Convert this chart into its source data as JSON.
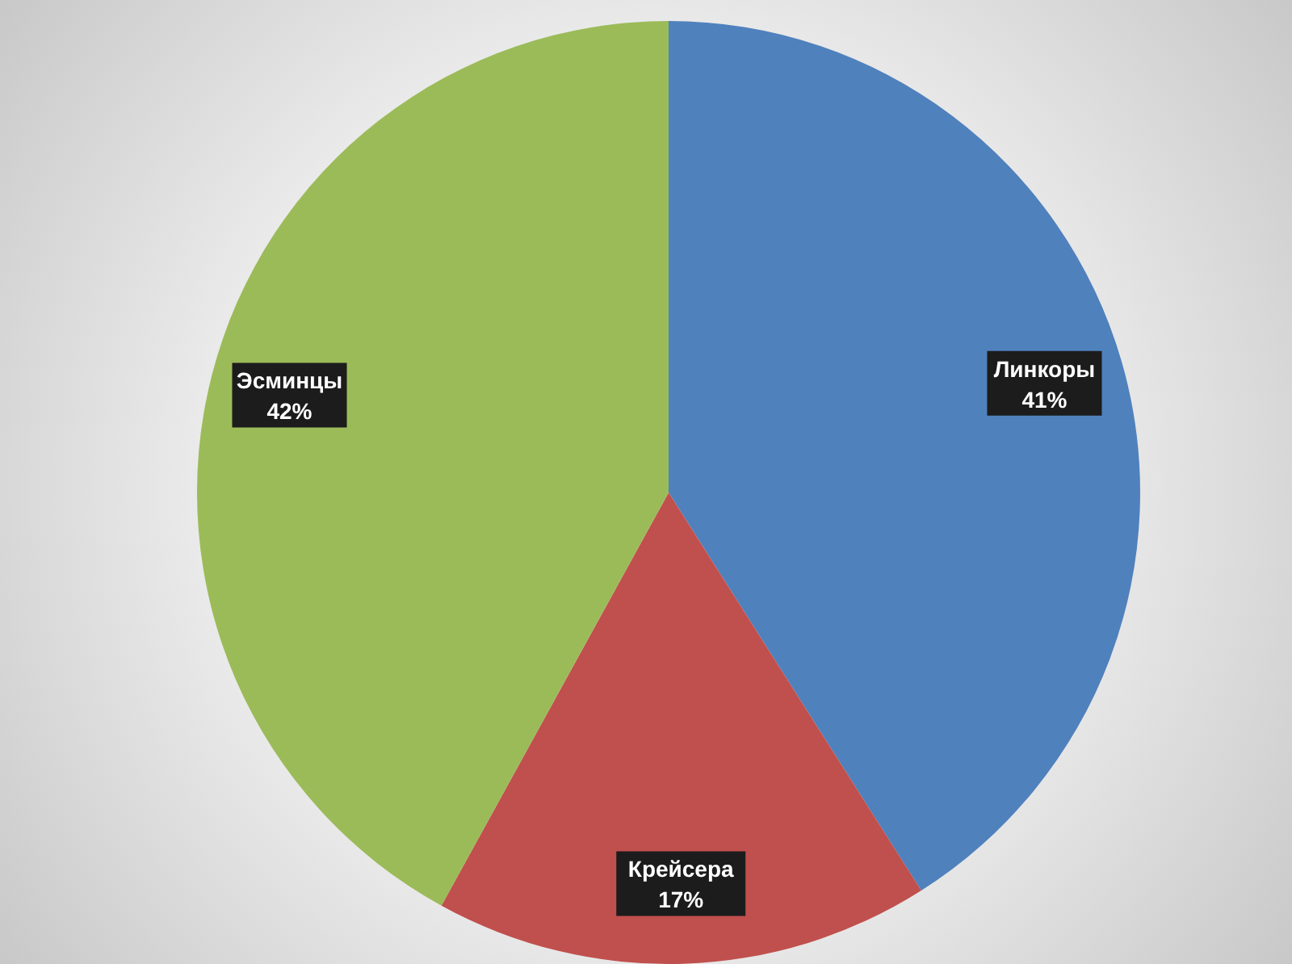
{
  "chart_data": {
    "type": "pie",
    "categories": [
      "Линкоры",
      "Крейсера",
      "Эсминцы"
    ],
    "values": [
      41,
      17,
      42
    ],
    "value_labels": [
      "41%",
      "17%",
      "42%"
    ],
    "colors": [
      "#4f81bd",
      "#c0504d",
      "#9bbb59"
    ],
    "legend": false
  }
}
